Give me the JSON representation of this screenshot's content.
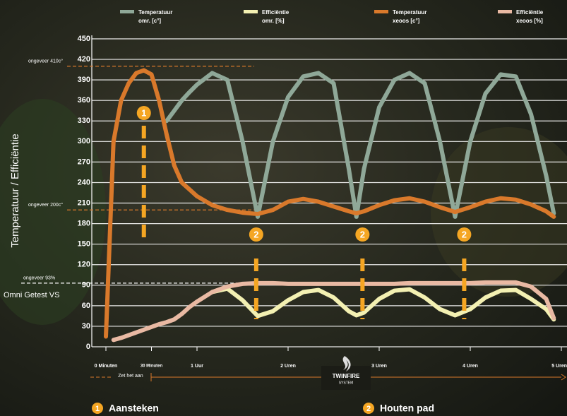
{
  "chart_data": {
    "type": "line",
    "y_label": "Temperatuur / Efficiëntie",
    "x": [
      0,
      5,
      10,
      15,
      20,
      25,
      30,
      35,
      40,
      45,
      50,
      55,
      60,
      70,
      80,
      90,
      100,
      110,
      120,
      130,
      140,
      150,
      160,
      165,
      170,
      180,
      190,
      200,
      210,
      220,
      230,
      240,
      250,
      260,
      270,
      280,
      290,
      295
    ],
    "xlim": [
      0,
      300
    ],
    "xticks": [
      {
        "value": 0,
        "label": "0 Minuten"
      },
      {
        "value": 30,
        "label": "30 Minuten"
      },
      {
        "value": 60,
        "label": "1 Uur"
      },
      {
        "value": 120,
        "label": "2 Uren"
      },
      {
        "value": 180,
        "label": "3 Uren"
      },
      {
        "value": 240,
        "label": "4 Uren"
      },
      {
        "value": 300,
        "label": "5 Uren"
      }
    ],
    "ylim": [
      0,
      450
    ],
    "yticks": [
      0,
      30,
      60,
      90,
      120,
      150,
      180,
      210,
      240,
      270,
      300,
      330,
      360,
      390,
      420,
      450
    ],
    "grid": true,
    "series": [
      {
        "name": "Temperatuur omr. [c°]",
        "color": "#8fa898",
        "values": [
          null,
          null,
          null,
          null,
          null,
          null,
          null,
          null,
          330,
          345,
          360,
          372,
          383,
          400,
          390,
          300,
          190,
          300,
          365,
          395,
          400,
          385,
          260,
          190,
          260,
          350,
          390,
          400,
          385,
          300,
          190,
          300,
          370,
          398,
          395,
          340,
          250,
          195
        ]
      },
      {
        "name": "Efficiëntie omr. [%]",
        "color": "#f3f0b2",
        "values": [
          null,
          null,
          null,
          null,
          null,
          null,
          null,
          null,
          null,
          null,
          null,
          null,
          null,
          80,
          85,
          68,
          45,
          52,
          68,
          80,
          83,
          72,
          52,
          46,
          50,
          70,
          82,
          84,
          72,
          55,
          46,
          55,
          72,
          82,
          83,
          70,
          55,
          40
        ]
      },
      {
        "name": "Temperatuur xeoos [c°]",
        "color": "#d9792b",
        "values": [
          15,
          300,
          360,
          385,
          400,
          404,
          398,
          360,
          310,
          265,
          240,
          230,
          220,
          207,
          200,
          196,
          194,
          200,
          212,
          216,
          212,
          205,
          198,
          195,
          198,
          207,
          214,
          217,
          212,
          204,
          197,
          204,
          212,
          217,
          215,
          208,
          198,
          190
        ]
      },
      {
        "name": "Efficiëntie xeoos [%]",
        "color": "#e9b9a3",
        "values": [
          null,
          10,
          13,
          17,
          21,
          25,
          29,
          33,
          36,
          40,
          48,
          58,
          66,
          80,
          88,
          92,
          93,
          93,
          92,
          92,
          92,
          92,
          92,
          92,
          92,
          92,
          92,
          93,
          93,
          93,
          93,
          93,
          94,
          94,
          94,
          88,
          70,
          42
        ]
      }
    ],
    "reference_lines": [
      {
        "label": "ongeveer 410c°",
        "value": 410
      },
      {
        "label": "ongeveer 200c°",
        "value": 200
      },
      {
        "label": "ongeveer 93%",
        "value": 93
      }
    ],
    "side_note": "Omni Getest VS",
    "markers": [
      {
        "label": "1",
        "x": 25
      },
      {
        "label": "2",
        "x": 99
      },
      {
        "label": "2",
        "x": 169
      },
      {
        "label": "2",
        "x": 236
      }
    ],
    "start_note": "Zet het aan",
    "logo": {
      "name": "TWINFIRE",
      "sub": "SYSTEM"
    },
    "footer": [
      {
        "number": "1",
        "text": "Aansteken"
      },
      {
        "number": "2",
        "text": "Houten pad"
      }
    ]
  }
}
